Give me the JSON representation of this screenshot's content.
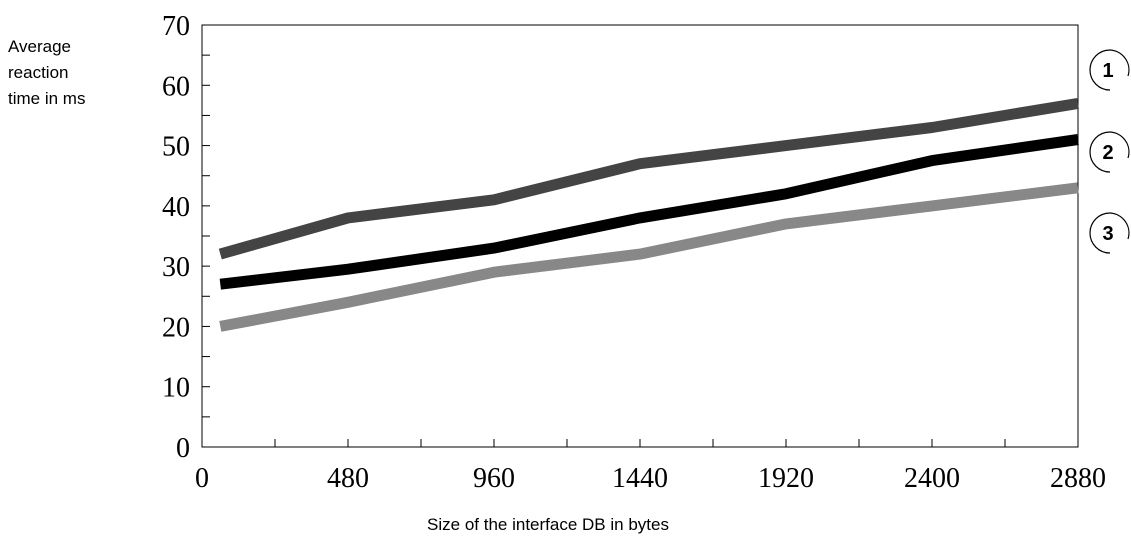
{
  "chart_data": {
    "type": "line",
    "ylabel_lines": [
      "Average",
      "reaction",
      "time in ms"
    ],
    "xlabel": "Size of the interface DB in bytes",
    "title": "",
    "xlim": [
      0,
      2880
    ],
    "ylim": [
      0,
      70
    ],
    "x_ticks": [
      0,
      480,
      960,
      1440,
      1920,
      2400,
      2880
    ],
    "x_tick_labels": [
      "0",
      "480",
      "960",
      "1440",
      "1920",
      "2400",
      "2880"
    ],
    "y_ticks": [
      0,
      10,
      20,
      30,
      40,
      50,
      60,
      70
    ],
    "y_tick_labels": [
      "0",
      "10",
      "20",
      "30",
      "40",
      "50",
      "60",
      "70"
    ],
    "grid": false,
    "series": [
      {
        "name": "1",
        "color": "#444444",
        "x": [
          60,
          480,
          960,
          1440,
          1920,
          2400,
          2880
        ],
        "values": [
          32,
          38,
          41,
          47,
          50,
          53,
          57
        ]
      },
      {
        "name": "2",
        "color": "#000000",
        "x": [
          60,
          480,
          960,
          1440,
          1920,
          2400,
          2880
        ],
        "values": [
          27,
          29.5,
          33,
          38,
          42,
          47.5,
          51
        ]
      },
      {
        "name": "3",
        "color": "#888888",
        "x": [
          60,
          480,
          960,
          1440,
          1920,
          2400,
          2880
        ],
        "values": [
          20,
          24,
          29,
          32,
          37,
          40,
          43
        ]
      }
    ],
    "markers": [
      "1",
      "2",
      "3"
    ]
  }
}
